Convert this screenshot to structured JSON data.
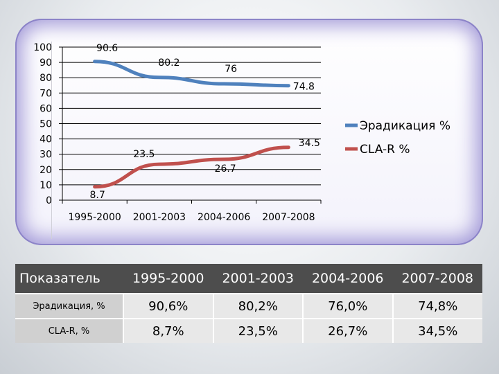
{
  "chart_data": {
    "type": "line",
    "categories": [
      "1995-2000",
      "2001-2003",
      "2004-2006",
      "2007-2008"
    ],
    "series": [
      {
        "name": "Эрадикация %",
        "values": [
          90.6,
          80.2,
          76,
          74.8
        ],
        "labels": [
          "90.6",
          "80.2",
          "76",
          "74.8"
        ],
        "color": "#4f81bd"
      },
      {
        "name": "CLA-R %",
        "values": [
          8.7,
          23.5,
          26.7,
          34.5
        ],
        "labels": [
          "8.7",
          "23.5",
          "26.7",
          "34.5"
        ],
        "color": "#c0504d"
      }
    ],
    "yticks": [
      "0",
      "10",
      "20",
      "30",
      "40",
      "50",
      "60",
      "70",
      "80",
      "90",
      "100"
    ],
    "ylim": [
      0,
      100
    ],
    "grid": true,
    "legend": "right"
  },
  "table": {
    "headers": [
      "Показатель",
      "1995-2000",
      "2001-2003",
      "2004-2006",
      "2007-2008"
    ],
    "rows": [
      {
        "label": "Эрадикация, %",
        "cells": [
          "90,6%",
          "80,2%",
          "76,0%",
          "74,8%"
        ]
      },
      {
        "label": "CLA-R, %",
        "cells": [
          "8,7%",
          "23,5%",
          "26,7%",
          "34,5%"
        ]
      }
    ]
  }
}
